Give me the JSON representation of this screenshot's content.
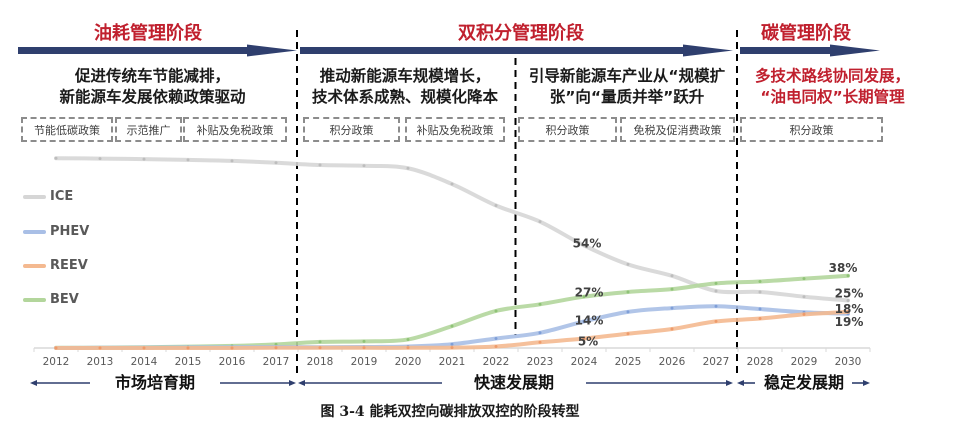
{
  "colors": {
    "stage_arrow": "#2f3f6e",
    "stage_title": "#c0202e",
    "highlight_text": "#c0202e",
    "body_text": "#1a1a1a",
    "policy_border": "#8c8c8c"
  },
  "stages": [
    {
      "title": "油耗管理阶段"
    },
    {
      "title": "双积分管理阶段"
    },
    {
      "title": "碳管理阶段"
    }
  ],
  "descriptions": [
    {
      "lines": [
        "促进传统车节能减排，",
        "新能源车发展依赖政策驱动"
      ],
      "highlight": false
    },
    {
      "lines": [
        "推动新能源车规模增长，",
        "技术体系成熟、规模化降本"
      ],
      "highlight": false
    },
    {
      "lines": [
        "引导新能源车产业从“规模扩",
        "张”向“量质并举”跃升"
      ],
      "highlight": false
    },
    {
      "lines": [
        "多技术路线协同发展，",
        "“油电同权”长期管理"
      ],
      "highlight": true
    }
  ],
  "policies": [
    "节能低碳政策",
    "示范推广",
    "补贴及免税政策",
    "积分政策",
    "补贴及免税政策",
    "积分政策",
    "免税及促消费政策",
    "积分政策"
  ],
  "periods": [
    "市场培育期",
    "快速发展期",
    "稳定发展期"
  ],
  "caption": "图 3-4 能耗双控向碳排放双控的阶段转型",
  "chart_data": {
    "type": "line",
    "title": "",
    "xlabel": "",
    "ylabel": "",
    "ylim": [
      0,
      100
    ],
    "grid": false,
    "legend_position": "left",
    "categories": [
      "2012",
      "2013",
      "2014",
      "2015",
      "2016",
      "2017",
      "2018",
      "2019",
      "2020",
      "2021",
      "2022",
      "2023",
      "2024",
      "2025",
      "2026",
      "2027",
      "2028",
      "2029",
      "2030"
    ],
    "series": [
      {
        "name": "ICE",
        "color": "#d6d6d6",
        "marker_color": "#bdbdbd",
        "values": [
          99.9,
          99.7,
          99.4,
          99.0,
          98.5,
          97.5,
          96.3,
          95.9,
          94.6,
          86.3,
          75.0,
          66.5,
          54,
          44,
          38,
          30,
          29.5,
          27,
          25
        ]
      },
      {
        "name": "PHEV",
        "color": "#a9bfe6",
        "marker_color": "#7f9fd8",
        "values": [
          0,
          0.1,
          0.2,
          0.3,
          0.4,
          0.5,
          0.4,
          0.5,
          0.8,
          2.0,
          5.0,
          8.0,
          14,
          19,
          21,
          22,
          20.5,
          18.8,
          18
        ]
      },
      {
        "name": "REEV",
        "color": "#f4b990",
        "marker_color": "#ee9b6b",
        "values": [
          0,
          0,
          0,
          0,
          0,
          0.1,
          0.1,
          0.1,
          0.1,
          0.2,
          0.8,
          3.0,
          5,
          7.5,
          10,
          14,
          15.5,
          17.7,
          19
        ]
      },
      {
        "name": "BEV",
        "color": "#b3d69c",
        "marker_color": "#8fc377",
        "values": [
          0.1,
          0.2,
          0.4,
          0.7,
          1.1,
          1.9,
          3.2,
          3.5,
          4.5,
          11.5,
          19.5,
          23,
          27,
          29.5,
          31,
          34,
          35,
          36.5,
          38
        ]
      }
    ],
    "annotations": [
      {
        "series": "ICE",
        "x": "2024",
        "text": "54%"
      },
      {
        "series": "BEV",
        "x": "2024",
        "text": "27%"
      },
      {
        "series": "PHEV",
        "x": "2024",
        "text": "14%"
      },
      {
        "series": "REEV",
        "x": "2024",
        "text": "5%"
      },
      {
        "series": "BEV",
        "x": "2030",
        "text": "38%"
      },
      {
        "series": "ICE",
        "x": "2030",
        "text": "25%"
      },
      {
        "series": "PHEV",
        "x": "2030",
        "text": "18%"
      },
      {
        "series": "REEV",
        "x": "2030",
        "text": "19%"
      }
    ]
  }
}
